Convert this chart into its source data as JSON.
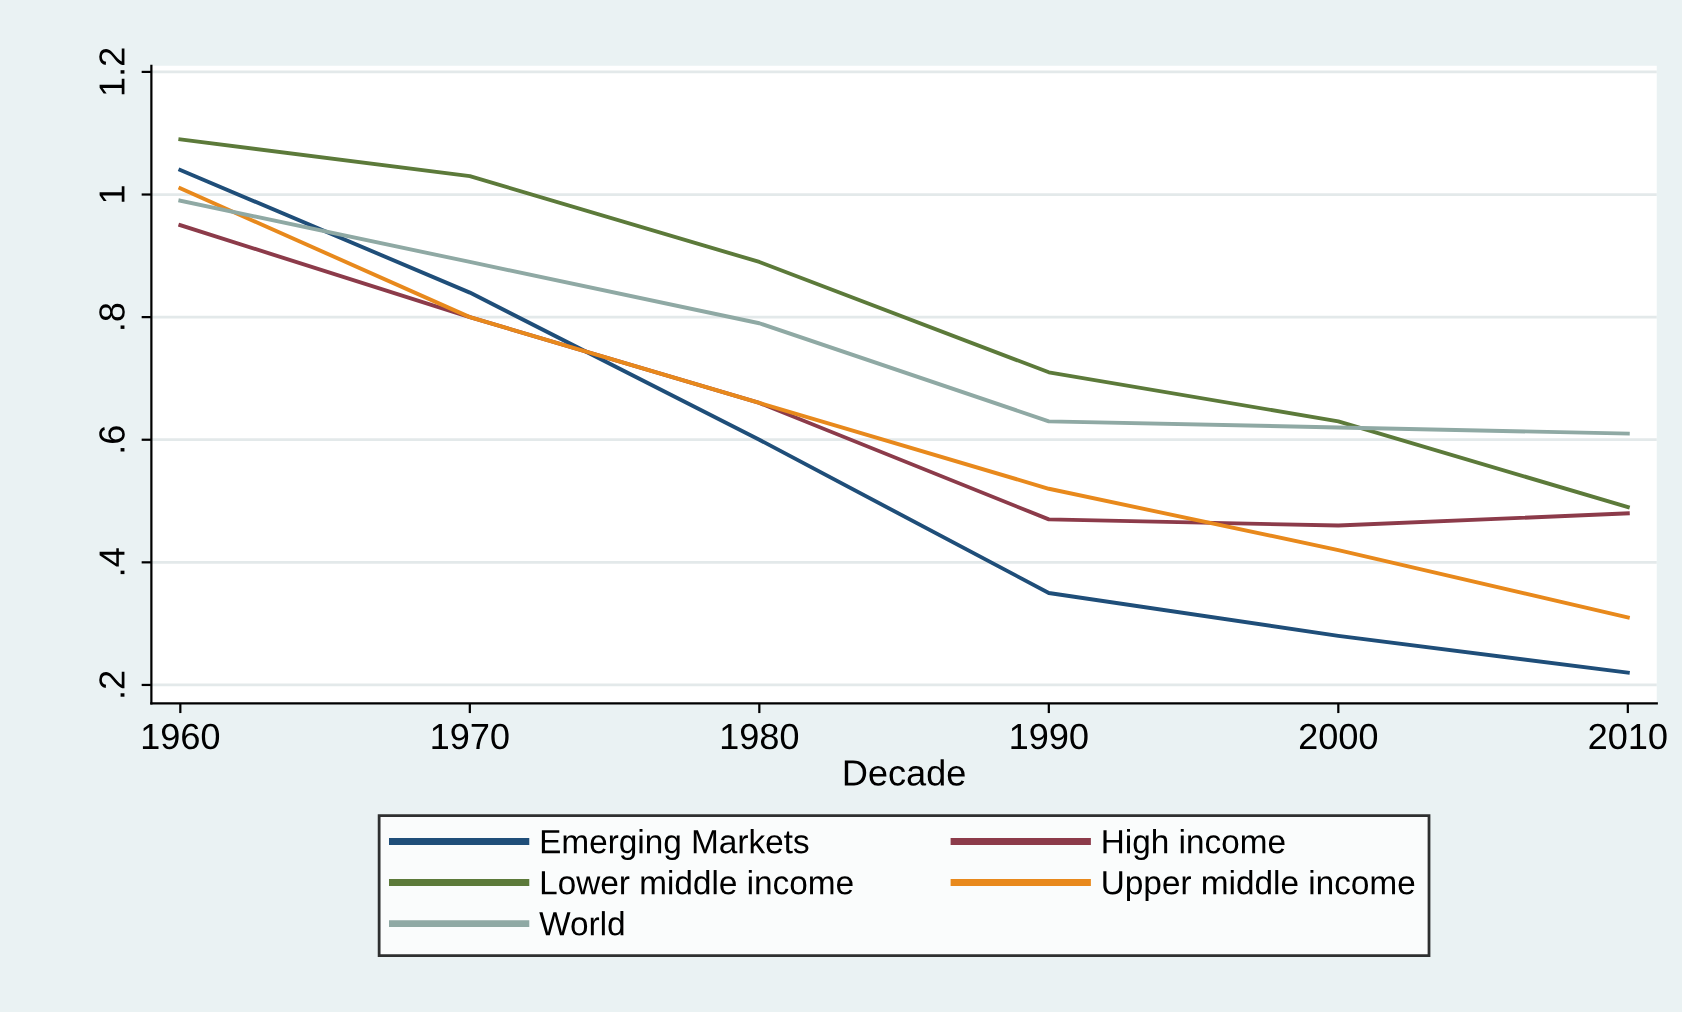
{
  "chart_data": {
    "type": "line",
    "xlabel": "Decade",
    "x": [
      1960,
      1970,
      1980,
      1990,
      2000,
      2010
    ],
    "series": [
      {
        "name": "Emerging Markets",
        "color": "#1f4e79",
        "values": [
          1.04,
          0.84,
          0.6,
          0.35,
          0.28,
          0.22
        ]
      },
      {
        "name": "High income",
        "color": "#8c3b4a",
        "values": [
          0.95,
          0.8,
          0.66,
          0.47,
          0.46,
          0.48
        ]
      },
      {
        "name": "Lower middle income",
        "color": "#5c7a3a",
        "values": [
          1.09,
          1.03,
          0.89,
          0.71,
          0.63,
          0.49
        ]
      },
      {
        "name": "Upper middle income",
        "color": "#e8891c",
        "values": [
          1.01,
          0.8,
          0.66,
          0.52,
          0.42,
          0.31
        ]
      },
      {
        "name": "World",
        "color": "#8fa9a4",
        "values": [
          0.99,
          0.89,
          0.79,
          0.63,
          0.62,
          0.61
        ]
      }
    ],
    "xlim": [
      1959,
      2011
    ],
    "xticks": [
      1960,
      1970,
      1980,
      1990,
      2000,
      2010
    ],
    "ylim": [
      0.17,
      1.21
    ],
    "yticks": [
      {
        "value": 0.2,
        "label": ".2"
      },
      {
        "value": 0.4,
        "label": ".4"
      },
      {
        "value": 0.6,
        "label": ".6"
      },
      {
        "value": 0.8,
        "label": ".8"
      },
      1,
      {
        "value": 1.2,
        "label": "1.2"
      }
    ],
    "grid": "y",
    "legend": "bottom",
    "marker": "none",
    "line_style": "solid"
  }
}
